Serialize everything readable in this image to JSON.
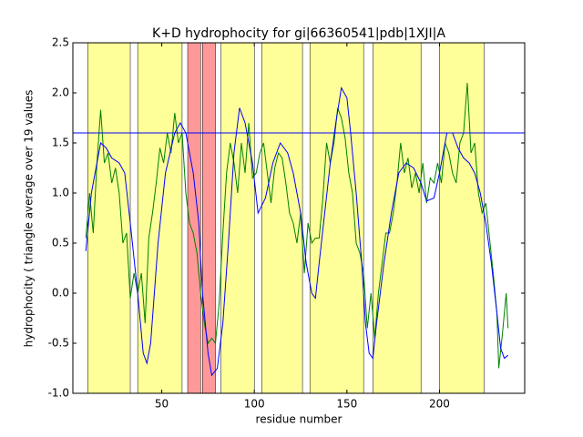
{
  "chart_data": {
    "type": "line",
    "title": "K+D hydrophocity for gi|66360541|pdb|1XJI|A",
    "x_label": "residue number",
    "y_label": "hydrophocity ( triangle average over 19 values",
    "xlim": [
      2,
      246
    ],
    "ylim": [
      -1.0,
      2.5
    ],
    "xticks": [
      50,
      100,
      150,
      200
    ],
    "yticks": [
      {
        "value": -1.0,
        "label": "-1.0"
      },
      -0.5,
      {
        "value": 0.0,
        "label": "0.0"
      },
      0.5,
      {
        "value": 1.0,
        "label": "1.0"
      },
      1.5,
      {
        "value": 2.0,
        "label": "2.0"
      },
      2.5
    ],
    "hline": {
      "value": 1.6,
      "color": "#0000ff"
    },
    "spans": [
      {
        "start": 10,
        "end": 33,
        "color": "#ffff99"
      },
      {
        "start": 37,
        "end": 61,
        "color": "#ffff99"
      },
      {
        "start": 64,
        "end": 71,
        "color": "#ff9999"
      },
      {
        "start": 72,
        "end": 79,
        "color": "#ff9999"
      },
      {
        "start": 82,
        "end": 100,
        "color": "#ffff99"
      },
      {
        "start": 104,
        "end": 126,
        "color": "#ffff99"
      },
      {
        "start": 130,
        "end": 159,
        "color": "#ffff99"
      },
      {
        "start": 164,
        "end": 190,
        "color": "#ffff99"
      },
      {
        "start": 200,
        "end": 224,
        "color": "#ffff99"
      }
    ],
    "series": [
      {
        "color": "#008000",
        "x": [
          9,
          11,
          13,
          15,
          17,
          19,
          21,
          23,
          25,
          27,
          29,
          31,
          33,
          35,
          37,
          39,
          41,
          43,
          45,
          47,
          49,
          51,
          53,
          55,
          57,
          59,
          61,
          63,
          65,
          67,
          69,
          71,
          73,
          75,
          77,
          79,
          81,
          83,
          85,
          87,
          89,
          91,
          93,
          95,
          97,
          99,
          101,
          103,
          105,
          107,
          109,
          111,
          113,
          115,
          117,
          119,
          121,
          123,
          125,
          127,
          129,
          131,
          133,
          135,
          137,
          139,
          141,
          143,
          145,
          147,
          149,
          151,
          153,
          155,
          157,
          159,
          161,
          163,
          165,
          167,
          169,
          171,
          173,
          175,
          177,
          179,
          181,
          183,
          185,
          187,
          189,
          191,
          193,
          195,
          197,
          199,
          201,
          203,
          205,
          207,
          209,
          211,
          213,
          215,
          217,
          219,
          221,
          223,
          225,
          227,
          229,
          231,
          232,
          234,
          236,
          237
        ],
        "values": [
          0.55,
          1.0,
          0.6,
          1.3,
          1.83,
          1.3,
          1.4,
          1.1,
          1.25,
          1.0,
          0.5,
          0.6,
          -0.05,
          0.2,
          0.0,
          0.2,
          -0.3,
          0.55,
          0.8,
          1.1,
          1.45,
          1.3,
          1.6,
          1.4,
          1.8,
          1.5,
          1.6,
          1.0,
          0.7,
          0.6,
          0.4,
          0.0,
          -0.3,
          -0.5,
          -0.45,
          -0.5,
          -0.1,
          0.6,
          1.2,
          1.5,
          1.3,
          1.0,
          1.5,
          1.2,
          1.7,
          1.15,
          1.2,
          1.4,
          1.5,
          1.2,
          0.9,
          1.25,
          1.4,
          1.35,
          1.1,
          0.8,
          0.7,
          0.5,
          0.8,
          0.2,
          0.7,
          0.5,
          0.55,
          0.55,
          0.95,
          1.5,
          1.3,
          1.5,
          1.85,
          1.75,
          1.55,
          1.2,
          1.0,
          0.5,
          0.4,
          0.2,
          -0.35,
          0.0,
          -0.45,
          0.0,
          0.3,
          0.6,
          0.6,
          0.8,
          1.1,
          1.5,
          1.2,
          1.35,
          1.05,
          1.2,
          1.0,
          1.3,
          0.9,
          1.15,
          1.1,
          1.3,
          1.1,
          1.5,
          1.4,
          1.2,
          1.1,
          1.5,
          1.6,
          2.1,
          1.4,
          1.5,
          1.0,
          0.8,
          0.9,
          0.55,
          0.2,
          -0.2,
          -0.75,
          -0.4,
          0.0,
          -0.35
        ]
      },
      {
        "color": "#0000ff",
        "x": [
          9,
          12,
          15,
          17,
          20,
          23,
          27,
          30,
          33,
          37,
          40,
          42,
          44,
          46,
          48,
          52,
          57,
          60,
          63,
          67,
          70,
          72,
          75,
          77,
          80,
          83,
          86,
          89,
          92,
          95,
          99,
          102,
          106,
          110,
          114,
          118,
          121,
          125,
          128,
          131,
          133,
          135,
          138,
          141,
          144,
          147,
          150,
          152,
          155,
          158,
          160,
          162,
          164,
          166,
          170,
          174,
          178,
          182,
          186,
          190,
          193,
          197,
          200,
          204,
          207,
          210,
          213,
          216,
          219,
          222,
          225,
          228,
          231,
          233,
          235,
          237
        ],
        "values": [
          0.42,
          1.0,
          1.3,
          1.5,
          1.45,
          1.35,
          1.3,
          1.2,
          0.7,
          0.0,
          -0.6,
          -0.7,
          -0.5,
          0.0,
          0.5,
          1.2,
          1.6,
          1.7,
          1.6,
          1.2,
          0.7,
          0.0,
          -0.6,
          -0.82,
          -0.75,
          -0.3,
          0.5,
          1.4,
          1.85,
          1.7,
          1.3,
          0.8,
          0.95,
          1.3,
          1.5,
          1.4,
          1.2,
          0.8,
          0.3,
          0.0,
          -0.05,
          0.3,
          0.8,
          1.3,
          1.7,
          2.05,
          1.95,
          1.6,
          1.0,
          0.3,
          -0.3,
          -0.6,
          -0.65,
          -0.3,
          0.3,
          0.8,
          1.2,
          1.3,
          1.25,
          1.1,
          0.92,
          0.95,
          1.2,
          1.6,
          1.6,
          1.45,
          1.35,
          1.3,
          1.2,
          1.0,
          0.7,
          0.3,
          -0.2,
          -0.55,
          -0.65,
          -0.62
        ]
      }
    ]
  }
}
